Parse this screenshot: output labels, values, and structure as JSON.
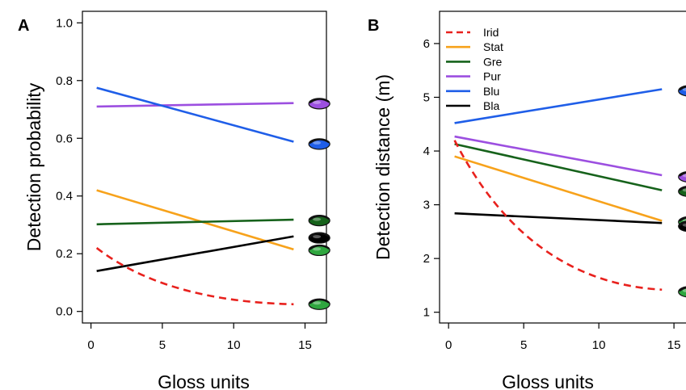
{
  "colors": {
    "Irid": "#e8211d",
    "Stat": "#f7a21b",
    "Gre": "#16621b",
    "Pur": "#9c4fe0",
    "Blu": "#1f5ee8",
    "Bla": "#000000"
  },
  "chart_data": [
    {
      "panel": "A",
      "type": "line",
      "xlabel": "Gloss units",
      "ylabel": "Detection probability",
      "xlim": [
        -0.6,
        16.5
      ],
      "ylim": [
        -0.04,
        1.04
      ],
      "xticks": [
        "0",
        "5",
        "10",
        "15"
      ],
      "yticks": [
        "0.0",
        "0.2",
        "0.4",
        "0.6",
        "0.8",
        "1.0"
      ],
      "x": [
        0.4,
        14.2
      ],
      "series": [
        {
          "key": "Pur",
          "values": [
            0.71,
            0.722
          ],
          "markerY": 0.72,
          "markerColor": "#9c4fe0",
          "dashed": false
        },
        {
          "key": "Blu",
          "values": [
            0.775,
            0.588
          ],
          "markerY": 0.58,
          "markerColor": "#1f5ee8",
          "dashed": false
        },
        {
          "key": "Stat",
          "values": [
            0.42,
            0.215
          ],
          "markerY": 0.212,
          "markerColor": "#2fa63f",
          "dashed": false
        },
        {
          "key": "Gre",
          "values": [
            0.302,
            0.318
          ],
          "markerY": 0.315,
          "markerColor": "#16621b",
          "dashed": false
        },
        {
          "key": "Bla",
          "values": [
            0.14,
            0.26
          ],
          "markerY": 0.255,
          "markerColor": "#000000",
          "dashed": false
        },
        {
          "key": "Irid",
          "values": [
            0.22,
            0.025
          ],
          "markerY": 0.025,
          "markerColor": "#2fa63f",
          "dashed": true
        }
      ]
    },
    {
      "panel": "B",
      "type": "line",
      "xlabel": "Gloss units",
      "ylabel": "Detection distance (m)",
      "xlim": [
        -0.6,
        16.5
      ],
      "ylim": [
        0.8,
        6.6
      ],
      "xticks": [
        "0",
        "5",
        "10",
        "15"
      ],
      "yticks": [
        "1",
        "2",
        "3",
        "4",
        "5",
        "6"
      ],
      "x": [
        0.4,
        14.2
      ],
      "legend": {
        "position": "top-left",
        "entries": [
          "Irid",
          "Stat",
          "Gre",
          "Pur",
          "Blu",
          "Bla"
        ]
      },
      "series": [
        {
          "key": "Blu",
          "values": [
            4.52,
            5.15
          ],
          "markerY": 5.12,
          "markerColor": "#1f5ee8",
          "dashed": false
        },
        {
          "key": "Pur",
          "values": [
            4.27,
            3.55
          ],
          "markerY": 3.52,
          "markerColor": "#9c4fe0",
          "dashed": false
        },
        {
          "key": "Gre",
          "values": [
            4.13,
            3.27
          ],
          "markerY": 3.25,
          "markerColor": "#16621b",
          "dashed": false
        },
        {
          "key": "Stat",
          "values": [
            3.9,
            2.7
          ],
          "markerY": 2.68,
          "markerColor": "#2fa63f",
          "dashed": false
        },
        {
          "key": "Bla",
          "values": [
            2.84,
            2.66
          ],
          "markerY": 2.6,
          "markerColor": "#000000",
          "dashed": false
        },
        {
          "key": "Irid",
          "values": [
            4.2,
            1.42
          ],
          "markerY": 1.38,
          "markerColor": "#2fa63f",
          "dashed": true
        }
      ]
    }
  ]
}
